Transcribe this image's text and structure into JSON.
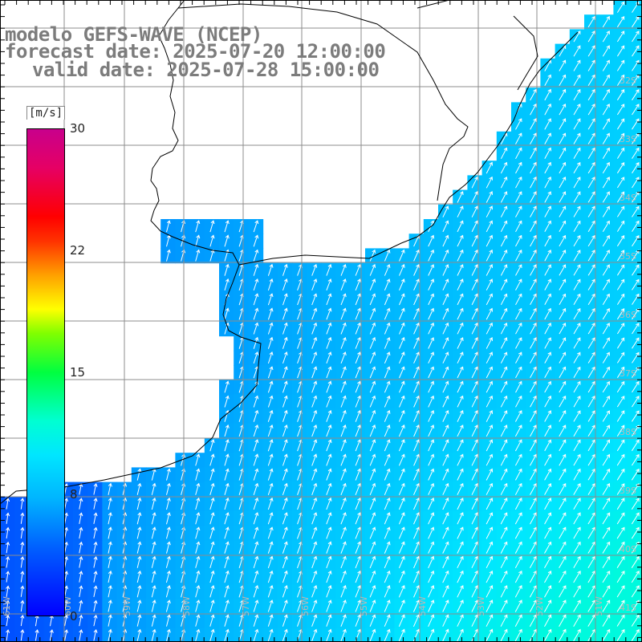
{
  "title": {
    "line1": "modelo GEFS-WAVE (NCEP)",
    "line2": "forecast date: 2025-07-20 12:00:00",
    "line3": "valid date: 2025-07-28 15:00:00"
  },
  "colorbar": {
    "unit": "[m/s]",
    "ticks": [
      "30",
      "22",
      "15",
      "8",
      "0"
    ],
    "min": 0,
    "max": 30
  },
  "map": {
    "lat_labels": [
      "32S",
      "33S",
      "34S",
      "35S",
      "36S",
      "37S",
      "38S",
      "39S",
      "40S",
      "41S"
    ],
    "lon_labels": [
      "61W",
      "60W",
      "59W",
      "58W",
      "57W",
      "56W",
      "55W",
      "54W",
      "53W",
      "52W",
      "51W"
    ],
    "wind_direction": "from south-southwest (arrows point north-northeast)",
    "wind_speed_range_ms": [
      4,
      11
    ],
    "colors": {
      "land": "#ffffff",
      "grid": "#8c8c8c",
      "coastline": "#000000",
      "arrow": "#ffffff",
      "title_text": "#7c7c7c"
    }
  }
}
